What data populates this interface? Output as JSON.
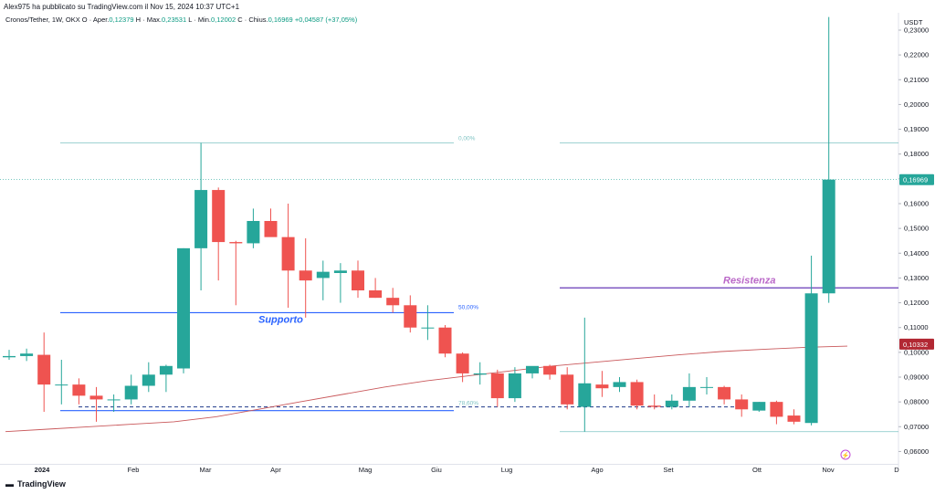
{
  "header": {
    "published": "Alex975 ha pubblicato su TradingView.com il Nov 15, 2024 10:37 UTC+1",
    "symbol": "Cronos/Tether, 1W, OKX",
    "o_label": "O",
    "open_label": "Aper.",
    "open": "0,12379",
    "h_label": "H",
    "high_label": "Max.",
    "high": "0,23531",
    "l_label": "L",
    "low_label": "Min.",
    "low": "0,12002",
    "c_label": "C",
    "close_label": "Chius.",
    "close": "0,16969",
    "change": "+0,04587 (+37,05%)"
  },
  "footer": {
    "brand": "TradingView",
    "logo_icon": "tradingview-logo-icon"
  },
  "colors": {
    "up": "#26a69a",
    "down": "#ef5350",
    "ma": "#c9585b",
    "support": "#2962ff",
    "resistance": "#673ab7",
    "fib": "#7ec3c3"
  },
  "chart_data": {
    "type": "candlestick",
    "y_unit": "USDT",
    "ylim": [
      0.055,
      0.237
    ],
    "y_ticks": [
      "0,23000",
      "0,22000",
      "0,21000",
      "0,20000",
      "0,19000",
      "0,18000",
      "0,17000",
      "0,16000",
      "0,15000",
      "0,14000",
      "0,13000",
      "0,12000",
      "0,11000",
      "0,10000",
      "0,09000",
      "0,08000",
      "0,07000",
      "0,06000"
    ],
    "x_labels": [
      "2024",
      "Feb",
      "Mar",
      "Apr",
      "Mag",
      "Giu",
      "Lug",
      "Ago",
      "Set",
      "Ott",
      "Nov",
      "D"
    ],
    "candles": [
      {
        "o": 0.098,
        "h": 0.101,
        "l": 0.097,
        "c": 0.0985
      },
      {
        "o": 0.0985,
        "h": 0.1015,
        "l": 0.0965,
        "c": 0.0995
      },
      {
        "o": 0.099,
        "h": 0.108,
        "l": 0.076,
        "c": 0.087
      },
      {
        "o": 0.087,
        "h": 0.097,
        "l": 0.079,
        "c": 0.087
      },
      {
        "o": 0.087,
        "h": 0.0895,
        "l": 0.079,
        "c": 0.0825
      },
      {
        "o": 0.0825,
        "h": 0.086,
        "l": 0.072,
        "c": 0.081
      },
      {
        "o": 0.081,
        "h": 0.083,
        "l": 0.076,
        "c": 0.081
      },
      {
        "o": 0.081,
        "h": 0.091,
        "l": 0.079,
        "c": 0.0865
      },
      {
        "o": 0.0865,
        "h": 0.096,
        "l": 0.084,
        "c": 0.091
      },
      {
        "o": 0.091,
        "h": 0.095,
        "l": 0.084,
        "c": 0.0945
      },
      {
        "o": 0.0935,
        "h": 0.142,
        "l": 0.0915,
        "c": 0.142
      },
      {
        "o": 0.142,
        "h": 0.1845,
        "l": 0.125,
        "c": 0.1655
      },
      {
        "o": 0.1655,
        "h": 0.1665,
        "l": 0.129,
        "c": 0.1445
      },
      {
        "o": 0.1445,
        "h": 0.145,
        "l": 0.119,
        "c": 0.144
      },
      {
        "o": 0.144,
        "h": 0.158,
        "l": 0.142,
        "c": 0.153
      },
      {
        "o": 0.153,
        "h": 0.158,
        "l": 0.147,
        "c": 0.1465
      },
      {
        "o": 0.1465,
        "h": 0.16,
        "l": 0.118,
        "c": 0.133
      },
      {
        "o": 0.133,
        "h": 0.146,
        "l": 0.114,
        "c": 0.129
      },
      {
        "o": 0.13,
        "h": 0.137,
        "l": 0.121,
        "c": 0.1325
      },
      {
        "o": 0.132,
        "h": 0.136,
        "l": 0.12,
        "c": 0.133
      },
      {
        "o": 0.133,
        "h": 0.137,
        "l": 0.122,
        "c": 0.125
      },
      {
        "o": 0.125,
        "h": 0.13,
        "l": 0.122,
        "c": 0.122
      },
      {
        "o": 0.122,
        "h": 0.126,
        "l": 0.116,
        "c": 0.119
      },
      {
        "o": 0.119,
        "h": 0.123,
        "l": 0.108,
        "c": 0.11
      },
      {
        "o": 0.11,
        "h": 0.119,
        "l": 0.105,
        "c": 0.11
      },
      {
        "o": 0.11,
        "h": 0.111,
        "l": 0.098,
        "c": 0.0995
      },
      {
        "o": 0.0995,
        "h": 0.1,
        "l": 0.088,
        "c": 0.0915
      },
      {
        "o": 0.091,
        "h": 0.096,
        "l": 0.087,
        "c": 0.0915
      },
      {
        "o": 0.0915,
        "h": 0.093,
        "l": 0.078,
        "c": 0.0815
      },
      {
        "o": 0.0815,
        "h": 0.094,
        "l": 0.08,
        "c": 0.0915
      },
      {
        "o": 0.0915,
        "h": 0.094,
        "l": 0.0895,
        "c": 0.0945
      },
      {
        "o": 0.0945,
        "h": 0.095,
        "l": 0.089,
        "c": 0.091
      },
      {
        "o": 0.091,
        "h": 0.094,
        "l": 0.077,
        "c": 0.079
      },
      {
        "o": 0.078,
        "h": 0.114,
        "l": 0.068,
        "c": 0.0875
      },
      {
        "o": 0.087,
        "h": 0.0925,
        "l": 0.082,
        "c": 0.0855
      },
      {
        "o": 0.086,
        "h": 0.09,
        "l": 0.084,
        "c": 0.088
      },
      {
        "o": 0.088,
        "h": 0.089,
        "l": 0.077,
        "c": 0.0785
      },
      {
        "o": 0.0785,
        "h": 0.083,
        "l": 0.077,
        "c": 0.078
      },
      {
        "o": 0.078,
        "h": 0.083,
        "l": 0.077,
        "c": 0.0805
      },
      {
        "o": 0.0805,
        "h": 0.0915,
        "l": 0.078,
        "c": 0.086
      },
      {
        "o": 0.086,
        "h": 0.09,
        "l": 0.083,
        "c": 0.086
      },
      {
        "o": 0.086,
        "h": 0.0865,
        "l": 0.079,
        "c": 0.081
      },
      {
        "o": 0.081,
        "h": 0.083,
        "l": 0.074,
        "c": 0.077
      },
      {
        "o": 0.0765,
        "h": 0.08,
        "l": 0.076,
        "c": 0.08
      },
      {
        "o": 0.08,
        "h": 0.0805,
        "l": 0.071,
        "c": 0.074
      },
      {
        "o": 0.0745,
        "h": 0.077,
        "l": 0.071,
        "c": 0.072
      },
      {
        "o": 0.0715,
        "h": 0.139,
        "l": 0.0705,
        "c": 0.1238
      },
      {
        "o": 0.1238,
        "h": 0.2353,
        "l": 0.12,
        "c": 0.1697
      }
    ],
    "moving_average": [
      0.068,
      0.069,
      0.07,
      0.071,
      0.072,
      0.074,
      0.077,
      0.08,
      0.083,
      0.086,
      0.0885,
      0.0905,
      0.0925,
      0.0945,
      0.096,
      0.0975,
      0.099,
      0.1003,
      0.1012,
      0.102,
      0.1025
    ],
    "current_price": {
      "label": "0,16969",
      "value": 0.16969
    },
    "level_price": {
      "label": "0,10332",
      "value": 0.10332
    },
    "annotations": {
      "support_label": "Supporto",
      "resistance_label": "Resistenza",
      "fib_0": "0,00%",
      "fib_50": "50,00%",
      "fib_786": "78,60%"
    },
    "levels": {
      "fib_0": 0.1845,
      "fib_50": 0.116,
      "fib_786": 0.078,
      "support": 0.116,
      "support_low": 0.0765,
      "resistance": 0.126,
      "fib_low": 0.068
    }
  }
}
